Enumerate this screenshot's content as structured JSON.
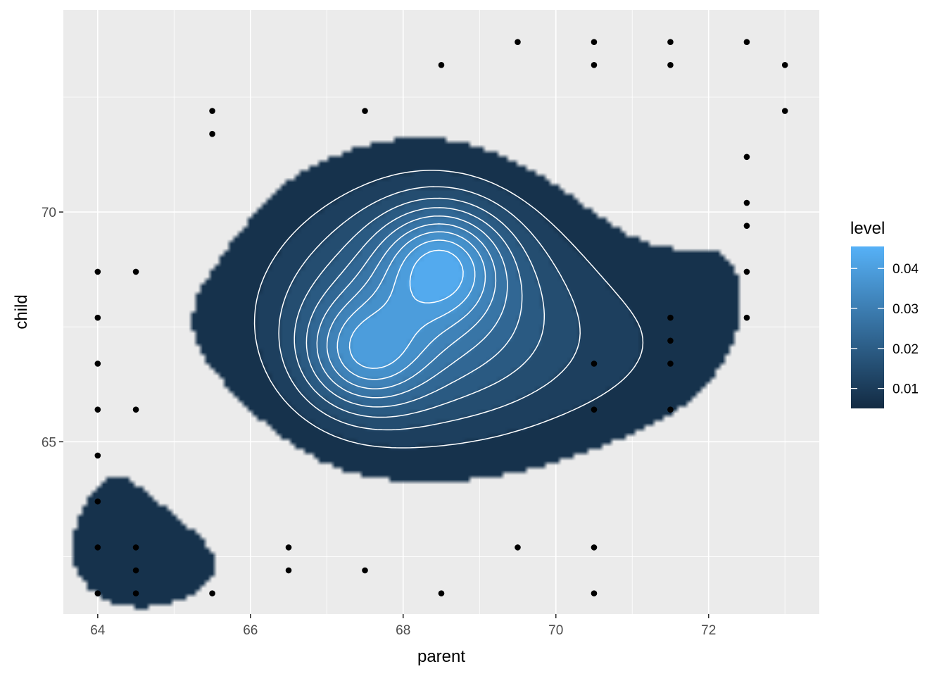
{
  "chart_data": {
    "type": "density2d-filled",
    "xlabel": "parent",
    "ylabel": "child",
    "xlim": [
      63.55,
      73.45
    ],
    "ylim": [
      61.25,
      74.4
    ],
    "x_ticks": [
      64,
      66,
      68,
      70,
      72
    ],
    "y_ticks": [
      65,
      70
    ],
    "grid": true,
    "legend": {
      "title": "level",
      "placement": "right",
      "range": [
        0.005,
        0.0455
      ],
      "breaks": [
        0.01,
        0.02,
        0.03,
        0.04
      ],
      "break_labels": [
        "0.01",
        "0.02",
        "0.03",
        "0.04"
      ],
      "color_low": "#132B43",
      "color_high": "#56B1F7"
    },
    "points": [
      {
        "x": 64,
        "y": 61.7
      },
      {
        "x": 64,
        "y": 62.7
      },
      {
        "x": 64,
        "y": 63.7
      },
      {
        "x": 64,
        "y": 64.7
      },
      {
        "x": 64,
        "y": 65.7
      },
      {
        "x": 64,
        "y": 66.7
      },
      {
        "x": 64,
        "y": 67.7
      },
      {
        "x": 64,
        "y": 68.7
      },
      {
        "x": 64.5,
        "y": 61.7
      },
      {
        "x": 64.5,
        "y": 62.2
      },
      {
        "x": 64.5,
        "y": 62.7
      },
      {
        "x": 64.5,
        "y": 65.7
      },
      {
        "x": 64.5,
        "y": 68.7
      },
      {
        "x": 65.5,
        "y": 61.7
      },
      {
        "x": 65.5,
        "y": 71.7
      },
      {
        "x": 65.5,
        "y": 72.2
      },
      {
        "x": 66.5,
        "y": 62.2
      },
      {
        "x": 66.5,
        "y": 62.7
      },
      {
        "x": 67.5,
        "y": 62.2
      },
      {
        "x": 67.5,
        "y": 72.2
      },
      {
        "x": 68.5,
        "y": 61.7
      },
      {
        "x": 68.5,
        "y": 73.2
      },
      {
        "x": 69.5,
        "y": 62.7
      },
      {
        "x": 69.5,
        "y": 73.7
      },
      {
        "x": 70.5,
        "y": 61.7
      },
      {
        "x": 70.5,
        "y": 62.7
      },
      {
        "x": 70.5,
        "y": 65.7
      },
      {
        "x": 70.5,
        "y": 66.7
      },
      {
        "x": 70.5,
        "y": 73.2
      },
      {
        "x": 70.5,
        "y": 73.7
      },
      {
        "x": 71.5,
        "y": 65.7
      },
      {
        "x": 71.5,
        "y": 66.7
      },
      {
        "x": 71.5,
        "y": 67.2
      },
      {
        "x": 71.5,
        "y": 67.7
      },
      {
        "x": 71.5,
        "y": 73.2
      },
      {
        "x": 71.5,
        "y": 73.7
      },
      {
        "x": 72.5,
        "y": 67.7
      },
      {
        "x": 72.5,
        "y": 68.7
      },
      {
        "x": 72.5,
        "y": 69.7
      },
      {
        "x": 72.5,
        "y": 70.2
      },
      {
        "x": 72.5,
        "y": 71.2
      },
      {
        "x": 72.5,
        "y": 73.7
      },
      {
        "x": 73,
        "y": 72.2
      },
      {
        "x": 73,
        "y": 73.2
      }
    ],
    "density_peaks": [
      {
        "x": 68.5,
        "y": 68.9,
        "level": 0.0455
      },
      {
        "x": 67.5,
        "y": 66.9,
        "level": 0.04
      }
    ]
  }
}
